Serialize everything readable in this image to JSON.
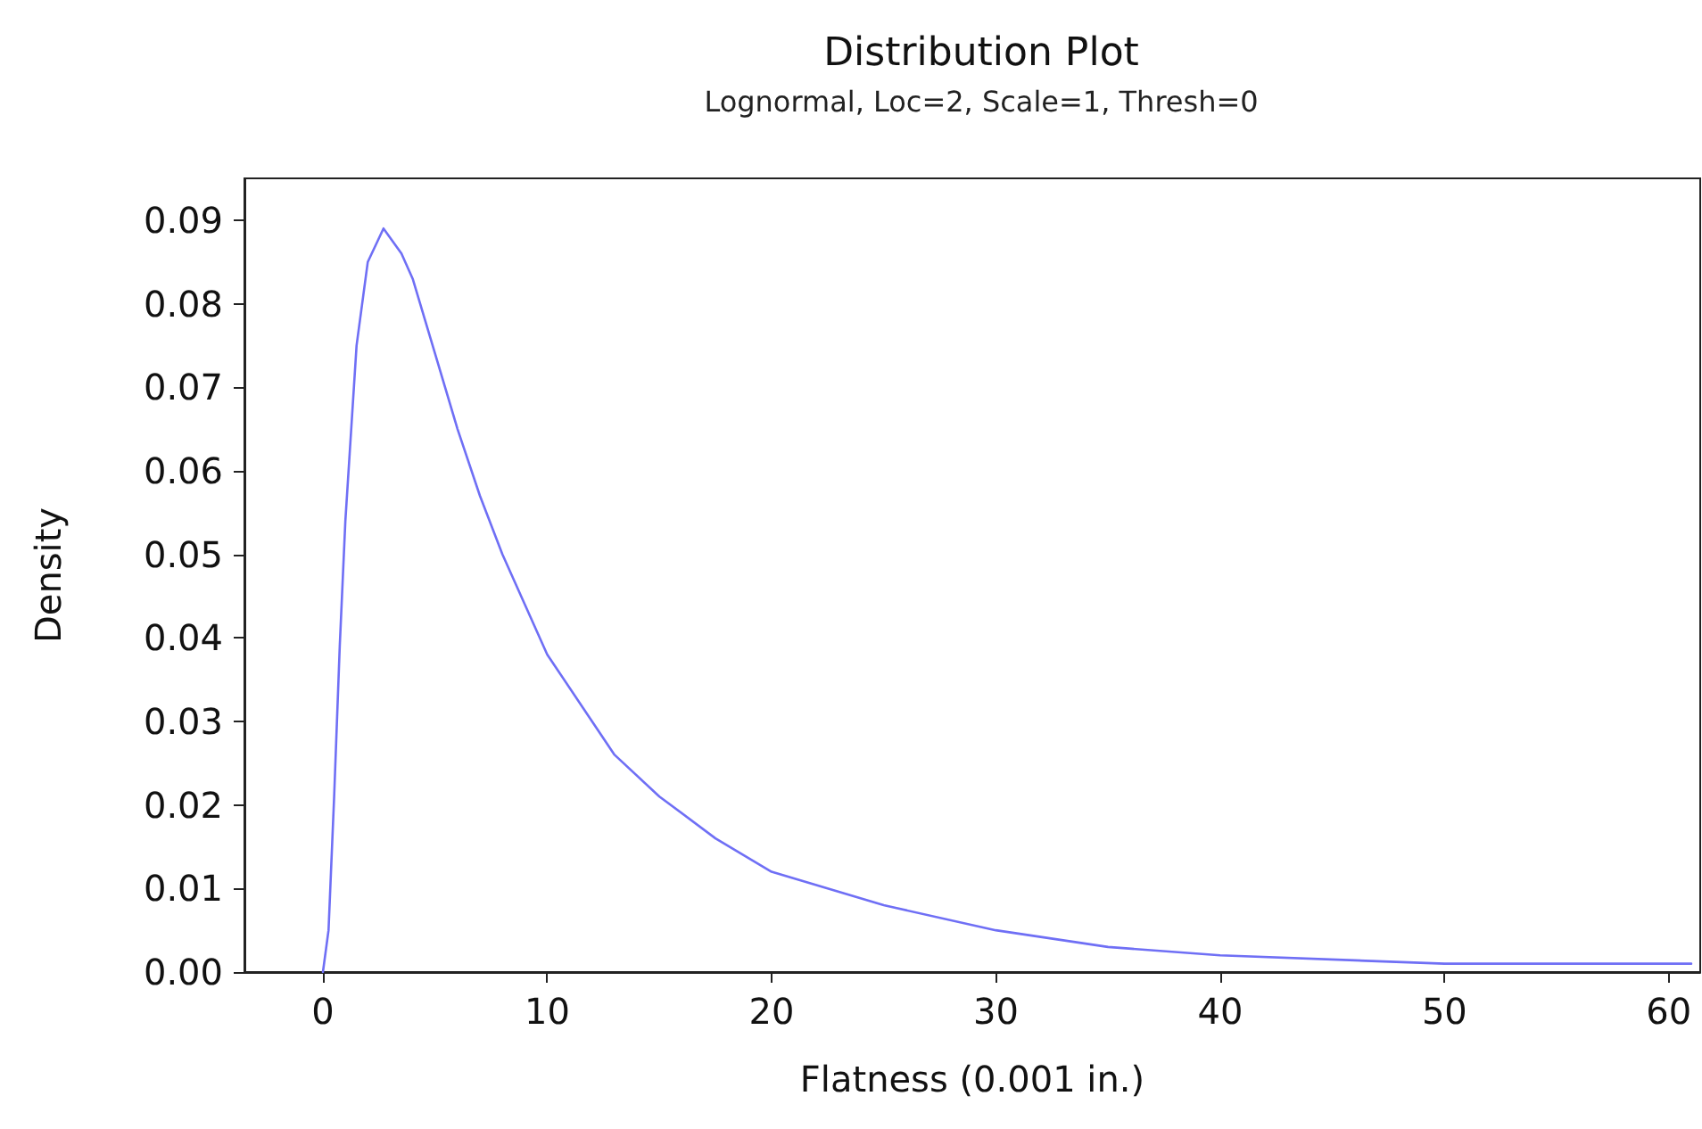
{
  "chart_data": {
    "type": "line",
    "title": "Distribution Plot",
    "subtitle": "Lognormal, Loc=2, Scale=1, Thresh=0",
    "xlabel": "Flatness (0.001 in.)",
    "ylabel": "Density",
    "x": [
      0,
      0.25,
      0.5,
      0.75,
      1,
      1.5,
      2,
      2.7,
      3.5,
      4,
      5,
      6,
      7,
      8,
      9,
      10,
      12,
      13,
      15,
      17.5,
      20,
      25,
      30,
      35,
      40,
      50,
      61
    ],
    "series": [
      {
        "color": "#6f6ff5",
        "values": [
          0,
          0.005,
          0.021,
          0.039,
          0.054,
          0.075,
          0.085,
          0.089,
          0.086,
          0.083,
          0.074,
          0.065,
          0.057,
          0.05,
          0.044,
          0.038,
          0.03,
          0.026,
          0.021,
          0.016,
          0.012,
          0.008,
          0.005,
          0.003,
          0.002,
          0.001,
          0.001
        ]
      }
    ],
    "xlim": [
      -3.5,
      61.4
    ],
    "ylim": [
      0,
      0.095
    ],
    "xticks": [
      0,
      10,
      20,
      30,
      40,
      50,
      60
    ],
    "yticks": [
      {
        "value": 0,
        "label": "0.00"
      },
      {
        "value": 0.01,
        "label": "0.01"
      },
      {
        "value": 0.02,
        "label": "0.02"
      },
      {
        "value": 0.03,
        "label": "0.03"
      },
      {
        "value": 0.04,
        "label": "0.04"
      },
      {
        "value": 0.05,
        "label": "0.05"
      },
      {
        "value": 0.06,
        "label": "0.06"
      },
      {
        "value": 0.07,
        "label": "0.07"
      },
      {
        "value": 0.08,
        "label": "0.08"
      },
      {
        "value": 0.09,
        "label": "0.09"
      }
    ],
    "grid": false,
    "marker": "none",
    "line_style": "solid"
  }
}
